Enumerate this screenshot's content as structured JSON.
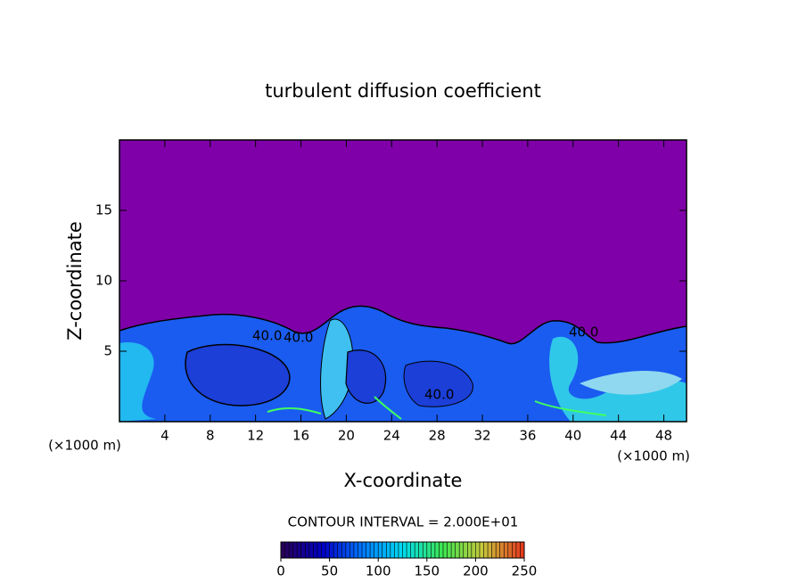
{
  "chart_data": {
    "type": "contour",
    "title": "turbulent diffusion coefficient",
    "x_label": "X-coordinate",
    "y_label": "Z-coordinate",
    "x_unit_left": "(×1000 m)",
    "x_unit_right": "(×1000 m)",
    "contour_interval_text": "CONTOUR INTERVAL = 2.000E+01",
    "xlim": [
      0,
      50
    ],
    "ylim": [
      0,
      20
    ],
    "xticks": [
      4,
      8,
      12,
      16,
      20,
      24,
      28,
      32,
      36,
      40,
      44,
      48
    ],
    "yticks": [
      5,
      10,
      15
    ],
    "contour_labels": [
      {
        "value": 40,
        "label": "40.0"
      },
      {
        "value": 40,
        "label": "40.0"
      },
      {
        "value": 40,
        "label": "40.0"
      },
      {
        "value": 40,
        "label": "40.0"
      }
    ],
    "colorbar": {
      "lim": [
        0,
        250
      ],
      "ticks": [
        0,
        50,
        100,
        150,
        200,
        250
      ]
    }
  }
}
